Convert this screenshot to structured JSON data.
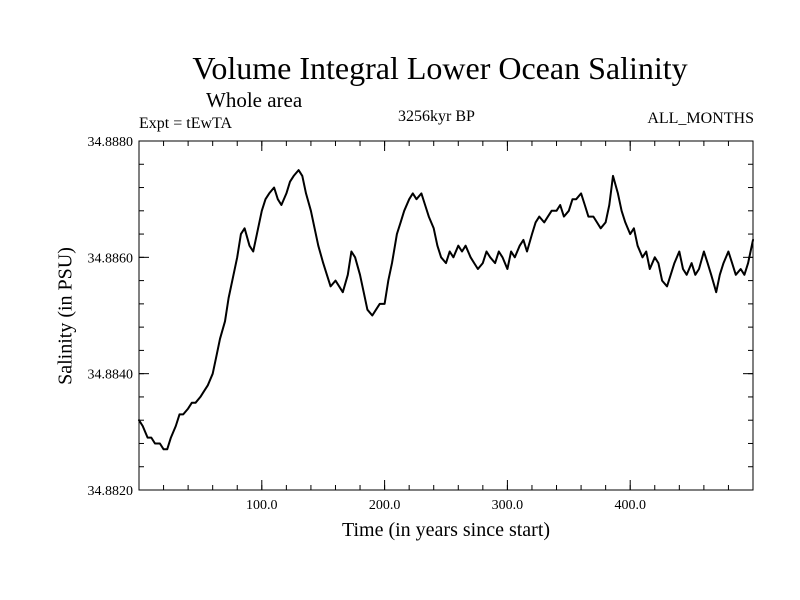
{
  "chart_data": {
    "type": "line",
    "title": "Volume Integral Lower Ocean Salinity",
    "subtitle": "Whole area",
    "left_label": "Expt = tEwTA",
    "center_label": "3256kyr BP",
    "right_label": "ALL_MONTHS",
    "xlabel": "Time (in years since start)",
    "ylabel": "Salinity (in PSU)",
    "xlim": [
      0,
      500
    ],
    "ylim": [
      34.882,
      34.888
    ],
    "x_ticks": [
      {
        "value": 100,
        "label": "100.0"
      },
      {
        "value": 200,
        "label": "200.0"
      },
      {
        "value": 300,
        "label": "300.0"
      },
      {
        "value": 400,
        "label": "400.0"
      }
    ],
    "y_ticks": [
      {
        "value": 34.882,
        "label": "34.8820"
      },
      {
        "value": 34.884,
        "label": "34.8840"
      },
      {
        "value": 34.886,
        "label": "34.8860"
      },
      {
        "value": 34.888,
        "label": "34.8880"
      }
    ],
    "x_minor_step": 20,
    "y_minor_step": 0.0004,
    "series": [
      {
        "name": "salinity",
        "x": [
          0,
          3,
          7,
          10,
          13,
          17,
          20,
          23,
          26,
          30,
          33,
          36,
          40,
          43,
          46,
          50,
          53,
          56,
          60,
          63,
          66,
          70,
          73,
          76,
          80,
          83,
          86,
          90,
          93,
          96,
          100,
          103,
          106,
          110,
          113,
          116,
          120,
          123,
          126,
          130,
          133,
          136,
          140,
          143,
          146,
          150,
          153,
          156,
          160,
          163,
          166,
          170,
          173,
          176,
          180,
          183,
          186,
          190,
          193,
          196,
          200,
          203,
          206,
          210,
          213,
          216,
          220,
          223,
          226,
          230,
          233,
          236,
          240,
          243,
          246,
          250,
          253,
          256,
          260,
          263,
          266,
          270,
          273,
          276,
          280,
          283,
          286,
          290,
          293,
          296,
          300,
          303,
          306,
          310,
          313,
          316,
          320,
          323,
          326,
          330,
          333,
          336,
          340,
          343,
          346,
          350,
          353,
          356,
          360,
          363,
          366,
          370,
          373,
          376,
          380,
          383,
          386,
          390,
          393,
          396,
          400,
          403,
          406,
          410,
          413,
          416,
          420,
          423,
          426,
          430,
          433,
          436,
          440,
          443,
          446,
          450,
          453,
          456,
          460,
          463,
          466,
          470,
          473,
          476,
          480,
          483,
          486,
          490,
          493,
          496,
          500
        ],
        "y": [
          34.8832,
          34.8831,
          34.8829,
          34.8829,
          34.8828,
          34.8828,
          34.8827,
          34.8827,
          34.8829,
          34.8831,
          34.8833,
          34.8833,
          34.8834,
          34.8835,
          34.8835,
          34.8836,
          34.8837,
          34.8838,
          34.884,
          34.8843,
          34.8846,
          34.8849,
          34.8853,
          34.8856,
          34.886,
          34.8864,
          34.8865,
          34.8862,
          34.8861,
          34.8864,
          34.8868,
          34.887,
          34.8871,
          34.8872,
          34.887,
          34.8869,
          34.8871,
          34.8873,
          34.8874,
          34.8875,
          34.8874,
          34.8871,
          34.8868,
          34.8865,
          34.8862,
          34.8859,
          34.8857,
          34.8855,
          34.8856,
          34.8855,
          34.8854,
          34.8857,
          34.8861,
          34.886,
          34.8857,
          34.8854,
          34.8851,
          34.885,
          34.8851,
          34.8852,
          34.8852,
          34.8856,
          34.8859,
          34.8864,
          34.8866,
          34.8868,
          34.887,
          34.8871,
          34.887,
          34.8871,
          34.8869,
          34.8867,
          34.8865,
          34.8862,
          34.886,
          34.8859,
          34.8861,
          34.886,
          34.8862,
          34.8861,
          34.8862,
          34.886,
          34.8859,
          34.8858,
          34.8859,
          34.8861,
          34.886,
          34.8859,
          34.8861,
          34.886,
          34.8858,
          34.8861,
          34.886,
          34.8862,
          34.8863,
          34.8861,
          34.8864,
          34.8866,
          34.8867,
          34.8866,
          34.8867,
          34.8868,
          34.8868,
          34.8869,
          34.8867,
          34.8868,
          34.887,
          34.887,
          34.8871,
          34.8869,
          34.8867,
          34.8867,
          34.8866,
          34.8865,
          34.8866,
          34.8869,
          34.8874,
          34.8871,
          34.8868,
          34.8866,
          34.8864,
          34.8865,
          34.8862,
          34.886,
          34.8861,
          34.8858,
          34.886,
          34.8859,
          34.8856,
          34.8855,
          34.8857,
          34.8859,
          34.8861,
          34.8858,
          34.8857,
          34.8859,
          34.8857,
          34.8858,
          34.8861,
          34.8859,
          34.8857,
          34.8854,
          34.8857,
          34.8859,
          34.8861,
          34.8859,
          34.8857,
          34.8858,
          34.8857,
          34.8859,
          34.8863
        ]
      }
    ]
  }
}
